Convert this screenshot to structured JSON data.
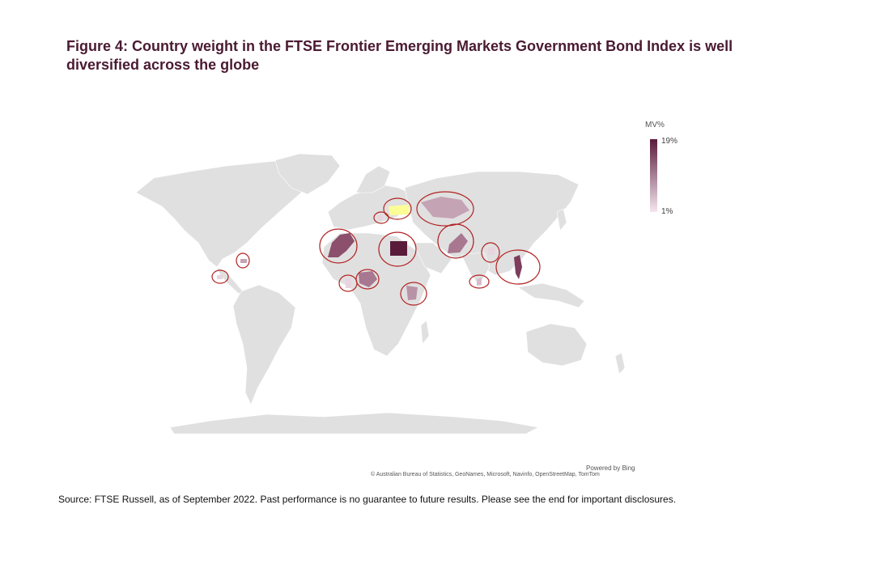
{
  "title_line1": "Figure 4: Country weight in the FTSE Frontier Emerging Markets Government Bond Index is well",
  "title_line2": "diversified across the globe",
  "legend": {
    "title": "MV%",
    "max_label": "19%",
    "min_label": "1%",
    "max_color": "#5a1b3a",
    "min_color": "#f4e6ee"
  },
  "land_color": "#e0e0e0",
  "highlight_colors": {
    "circle": "#b22222",
    "out_of_scale": "#fdfd96"
  },
  "attribution": {
    "powered_by": "Powered by Bing",
    "credits": "© Australian Bureau of Statistics, GeoNames, Microsoft, Navinfo, OpenStreetMap, TomTom"
  },
  "source": "Source: FTSE Russell, as of September 2022. Past performance is no guarantee to future results. Please see the end for important disclosures."
}
